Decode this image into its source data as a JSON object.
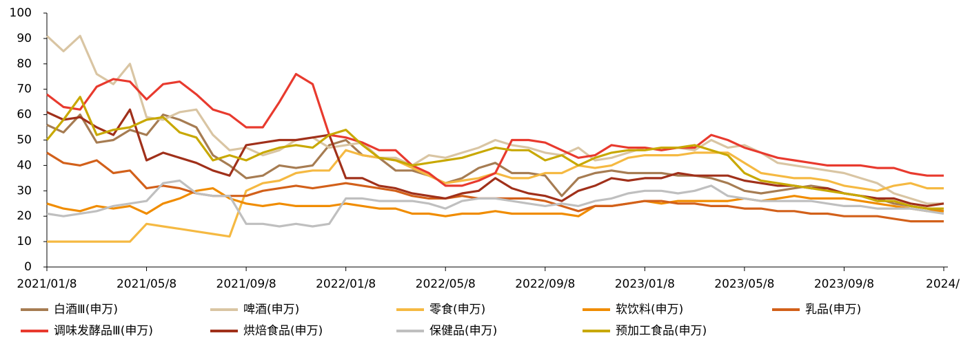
{
  "chart_data": {
    "type": "line",
    "categories": [
      "2021/01/8",
      null,
      null,
      null,
      null,
      null,
      "2021/05/8",
      null,
      null,
      null,
      null,
      null,
      "2021/09/8",
      null,
      null,
      null,
      null,
      null,
      "2022/01/8",
      null,
      null,
      null,
      null,
      null,
      "2022/05/8",
      null,
      null,
      null,
      null,
      null,
      "2022/09/8",
      null,
      null,
      null,
      null,
      null,
      "2023/01/8",
      null,
      null,
      null,
      null,
      null,
      "2023/05/8",
      null,
      null,
      null,
      null,
      null,
      "2023/09/8",
      null,
      null,
      null,
      null,
      null,
      "2024/"
    ],
    "ylim": [
      0,
      100
    ],
    "yticks": [
      0,
      10,
      20,
      30,
      40,
      50,
      60,
      70,
      80,
      90,
      100
    ],
    "grid": false,
    "series": [
      {
        "name": "白酒Ⅲ(申万)",
        "color": "#a67c52",
        "values": [
          56,
          53,
          60,
          49,
          50,
          54,
          52,
          60,
          58,
          55,
          44,
          40,
          35,
          36,
          40,
          39,
          40,
          48,
          50,
          44,
          43,
          38,
          38,
          36,
          33,
          35,
          39,
          41,
          37,
          37,
          36,
          28,
          35,
          37,
          38,
          37,
          37,
          37,
          36,
          36,
          35,
          33,
          30,
          29,
          30,
          31,
          32,
          31,
          29,
          28,
          27,
          25,
          24,
          23,
          22
        ]
      },
      {
        "name": "啤酒(申万)",
        "color": "#d9c5a3",
        "values": [
          91,
          85,
          91,
          76,
          72,
          80,
          59,
          58,
          61,
          62,
          52,
          46,
          47,
          44,
          46,
          50,
          51,
          47,
          48,
          49,
          43,
          43,
          40,
          44,
          43,
          45,
          47,
          50,
          48,
          47,
          45,
          44,
          47,
          42,
          43,
          45,
          47,
          46,
          47,
          46,
          50,
          47,
          48,
          45,
          41,
          40,
          39,
          38,
          37,
          35,
          33,
          29,
          27,
          25,
          25
        ]
      },
      {
        "name": "零食(申万)",
        "color": "#f5b942",
        "values": [
          10,
          10,
          10,
          10,
          10,
          10,
          17,
          16,
          15,
          14,
          13,
          12,
          30,
          33,
          34,
          37,
          38,
          38,
          46,
          44,
          43,
          42,
          39,
          36,
          33,
          34,
          35,
          37,
          35,
          35,
          37,
          37,
          40,
          39,
          40,
          43,
          44,
          44,
          44,
          45,
          45,
          45,
          41,
          37,
          36,
          35,
          35,
          34,
          32,
          31,
          30,
          32,
          33,
          31,
          31
        ]
      },
      {
        "name": "软饮料(申万)",
        "color": "#f08c00",
        "values": [
          25,
          23,
          22,
          24,
          23,
          24,
          21,
          25,
          27,
          30,
          31,
          27,
          25,
          24,
          25,
          24,
          24,
          24,
          25,
          24,
          23,
          23,
          21,
          21,
          20,
          21,
          21,
          22,
          21,
          21,
          21,
          21,
          20,
          24,
          24,
          25,
          26,
          25,
          26,
          26,
          26,
          26,
          27,
          26,
          27,
          28,
          27,
          27,
          27,
          26,
          25,
          24,
          23,
          22,
          22
        ]
      },
      {
        "name": "乳品(申万)",
        "color": "#d2601a",
        "values": [
          45,
          41,
          40,
          42,
          37,
          38,
          31,
          32,
          31,
          29,
          28,
          28,
          28,
          30,
          31,
          32,
          31,
          32,
          33,
          32,
          31,
          30,
          28,
          27,
          27,
          28,
          27,
          27,
          27,
          27,
          26,
          24,
          22,
          24,
          24,
          25,
          26,
          26,
          25,
          25,
          24,
          24,
          23,
          23,
          22,
          22,
          21,
          21,
          20,
          20,
          20,
          19,
          18,
          18,
          18
        ]
      },
      {
        "name": "调味发酵品Ⅲ(申万)",
        "color": "#e83a2e",
        "values": [
          68,
          63,
          62,
          71,
          74,
          73,
          66,
          72,
          73,
          68,
          62,
          60,
          55,
          55,
          65,
          76,
          72,
          52,
          51,
          49,
          46,
          46,
          40,
          37,
          32,
          32,
          34,
          37,
          50,
          50,
          49,
          46,
          43,
          44,
          48,
          47,
          47,
          46,
          47,
          47,
          52,
          50,
          47,
          45,
          43,
          42,
          41,
          40,
          40,
          40,
          39,
          39,
          37,
          36,
          36
        ]
      },
      {
        "name": "烘焙食品(申万)",
        "color": "#a0301a",
        "values": [
          61,
          58,
          59,
          55,
          52,
          62,
          42,
          45,
          43,
          41,
          38,
          36,
          48,
          49,
          50,
          50,
          51,
          52,
          35,
          35,
          32,
          31,
          29,
          28,
          27,
          29,
          30,
          35,
          31,
          29,
          28,
          26,
          30,
          32,
          35,
          34,
          35,
          35,
          37,
          36,
          36,
          36,
          34,
          33,
          32,
          32,
          31,
          31,
          29,
          28,
          27,
          27,
          25,
          24,
          25
        ]
      },
      {
        "name": "保健品(申万)",
        "color": "#bfbfbf",
        "values": [
          21,
          20,
          21,
          22,
          24,
          25,
          26,
          33,
          34,
          29,
          28,
          28,
          17,
          17,
          16,
          17,
          16,
          17,
          27,
          27,
          26,
          26,
          26,
          25,
          23,
          26,
          27,
          27,
          26,
          25,
          24,
          25,
          24,
          26,
          27,
          29,
          30,
          30,
          29,
          30,
          32,
          28,
          27,
          26,
          26,
          26,
          26,
          25,
          24,
          24,
          23,
          23,
          23,
          22,
          21
        ]
      },
      {
        "name": "预加工食品(申万)",
        "color": "#c8a800",
        "values": [
          50,
          58,
          67,
          52,
          54,
          55,
          58,
          59,
          53,
          51,
          42,
          44,
          42,
          45,
          47,
          48,
          47,
          52,
          54,
          48,
          43,
          42,
          40,
          41,
          42,
          43,
          45,
          47,
          46,
          46,
          42,
          44,
          40,
          43,
          45,
          46,
          46,
          47,
          47,
          48,
          46,
          44,
          37,
          34,
          33,
          32,
          31,
          30,
          29,
          28,
          26,
          26,
          24,
          23,
          23
        ]
      }
    ]
  }
}
